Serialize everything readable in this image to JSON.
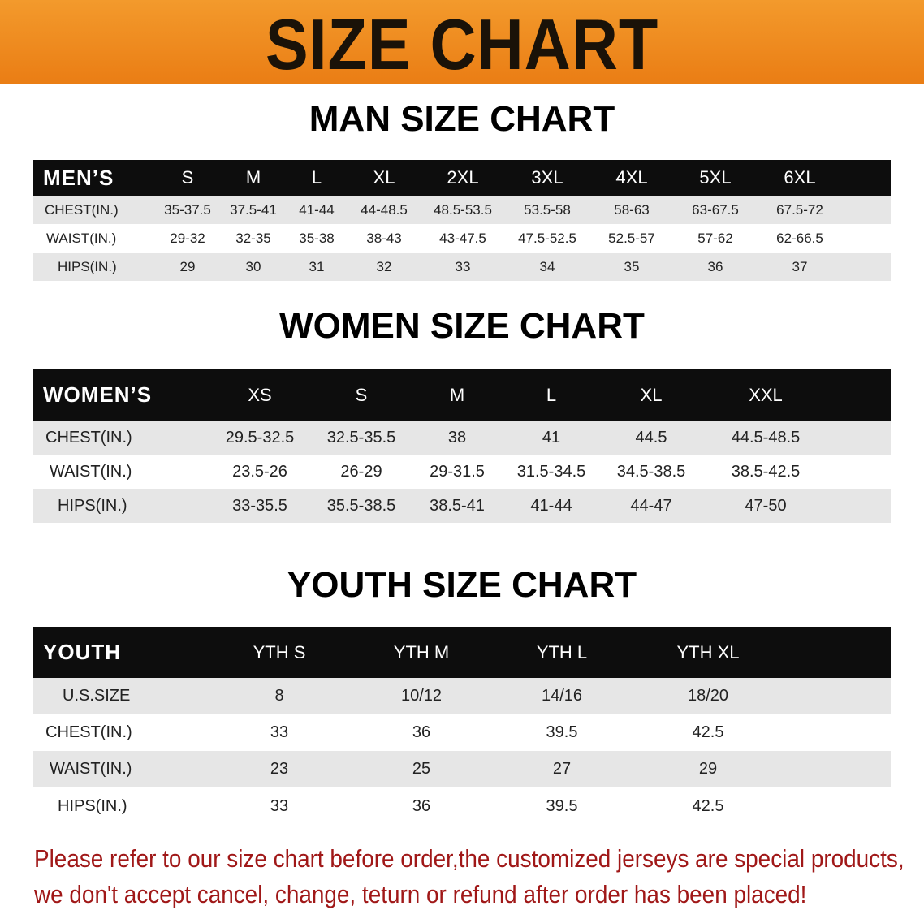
{
  "banner_title": "SIZE CHART",
  "men": {
    "title": "MAN SIZE CHART",
    "header": "MEN’S",
    "sizes": [
      "S",
      "M",
      "L",
      "XL",
      "2XL",
      "3XL",
      "4XL",
      "5XL",
      "6XL"
    ],
    "rows": [
      {
        "label": "CHEST(IN.)",
        "values": [
          "35-37.5",
          "37.5-41",
          "41-44",
          "44-48.5",
          "48.5-53.5",
          "53.5-58",
          "58-63",
          "63-67.5",
          "67.5-72"
        ]
      },
      {
        "label": "WAIST(IN.)",
        "values": [
          "29-32",
          "32-35",
          "35-38",
          "38-43",
          "43-47.5",
          "47.5-52.5",
          "52.5-57",
          "57-62",
          "62-66.5"
        ]
      },
      {
        "label": "HIPS(IN.)",
        "values": [
          "29",
          "30",
          "31",
          "32",
          "33",
          "34",
          "35",
          "36",
          "37"
        ]
      }
    ]
  },
  "women": {
    "title": "WOMEN SIZE CHART",
    "header": "WOMEN’S",
    "sizes": [
      "XS",
      "S",
      "M",
      "L",
      "XL",
      "XXL"
    ],
    "rows": [
      {
        "label": "CHEST(IN.)",
        "values": [
          "29.5-32.5",
          "32.5-35.5",
          "38",
          "41",
          "44.5",
          "44.5-48.5"
        ]
      },
      {
        "label": "WAIST(IN.)",
        "values": [
          "23.5-26",
          "26-29",
          "29-31.5",
          "31.5-34.5",
          "34.5-38.5",
          "38.5-42.5"
        ]
      },
      {
        "label": "HIPS(IN.)",
        "values": [
          "33-35.5",
          "35.5-38.5",
          "38.5-41",
          "41-44",
          "44-47",
          "47-50"
        ]
      }
    ]
  },
  "youth": {
    "title": "YOUTH SIZE CHART",
    "header": "YOUTH",
    "sizes": [
      "YTH S",
      "YTH M",
      "YTH L",
      "YTH XL"
    ],
    "rows": [
      {
        "label": "U.S.SIZE",
        "values": [
          "8",
          "10/12",
          "14/16",
          "18/20"
        ]
      },
      {
        "label": "CHEST(IN.)",
        "values": [
          "33",
          "36",
          "39.5",
          "42.5"
        ]
      },
      {
        "label": "WAIST(IN.)",
        "values": [
          "23",
          "25",
          "27",
          "29"
        ]
      },
      {
        "label": "HIPS(IN.)",
        "values": [
          "33",
          "36",
          "39.5",
          "42.5"
        ]
      }
    ]
  },
  "note_line1": "Please refer to our size chart before order,the customized jerseys are special products,",
  "note_line2": "we don't accept cancel, change, teturn or refund after order has been placed!",
  "colors": {
    "banner": "#ee8a20",
    "header_row": "#0d0d0d",
    "stripe": "#e6e6e6",
    "note": "#a01818"
  }
}
